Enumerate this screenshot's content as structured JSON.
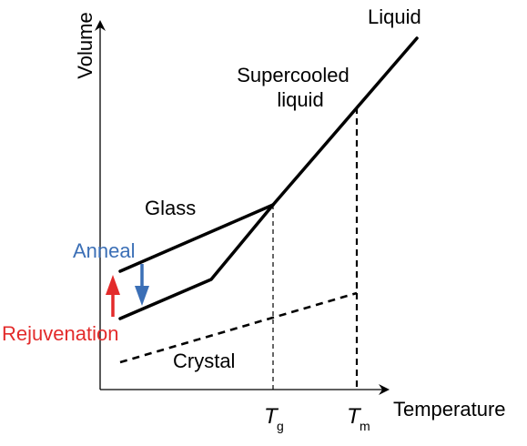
{
  "axes": {
    "x_title": "Temperature",
    "y_title": "Volume"
  },
  "labels": {
    "liquid": "Liquid",
    "supercooled_line1": "Supercooled",
    "supercooled_line2": "liquid",
    "glass": "Glass",
    "crystal": "Crystal",
    "anneal": "Anneal",
    "rejuvenation": "Rejuvenation"
  },
  "ticks": {
    "tg_symbol": "T",
    "tg_sub": "g",
    "tm_symbol": "T",
    "tm_sub": "m"
  },
  "colors": {
    "line": "#000000",
    "anneal": "#3b6fb6",
    "rejuvenation": "#e32b2b"
  },
  "icons": {
    "anneal_arrow": "arrow-down",
    "rejuvenation_arrow": "arrow-up"
  }
}
